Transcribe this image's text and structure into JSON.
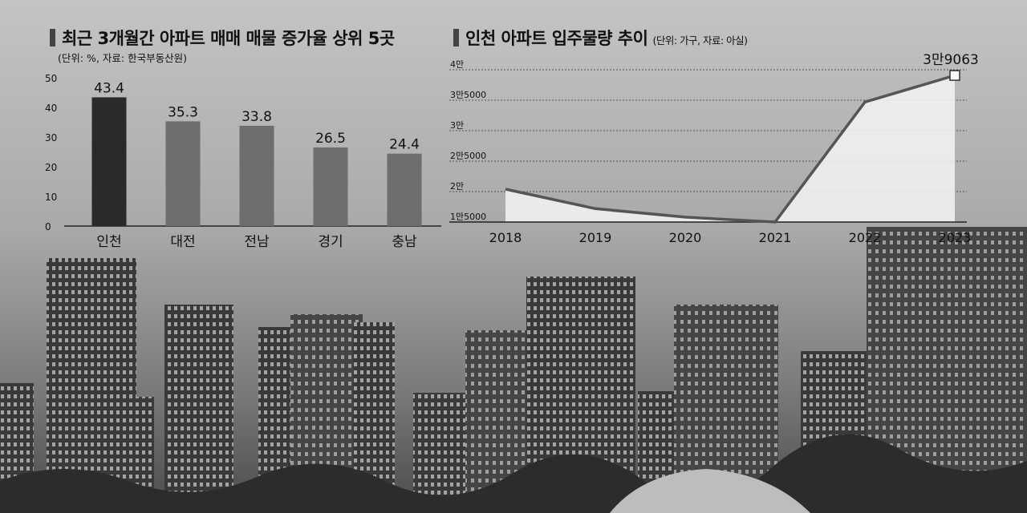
{
  "left_chart": {
    "title": "최근 3개월간 아파트 매매 매물 증가율 상위 5곳",
    "unit_note": "(단위: %, 자료: 한국부동산원)"
  },
  "right_chart": {
    "title": "인천 아파트 입주물량 추이",
    "unit_note": "(단위: 가구, 자료: 아실)"
  },
  "colors": {
    "highlight_bar": "#2a2a2a",
    "bar": "#6e6e6e",
    "line": "#555555",
    "area": "#f4f4f4"
  },
  "chart_data": [
    {
      "type": "bar",
      "title": "최근 3개월간 아파트 매매 매물 증가율 상위 5곳",
      "categories": [
        "인천",
        "대전",
        "전남",
        "경기",
        "충남"
      ],
      "values": [
        43.4,
        35.3,
        33.8,
        26.5,
        24.4
      ],
      "value_labels": [
        "43.4",
        "35.3",
        "33.8",
        "26.5",
        "24.4"
      ],
      "ylim": [
        0,
        50
      ],
      "y_ticks": [
        0,
        10,
        20,
        30,
        40,
        50
      ],
      "y_tick_labels": [
        "0",
        "10",
        "20",
        "30",
        "40",
        "50"
      ],
      "grid": false
    },
    {
      "type": "area",
      "title": "인천 아파트 입주물량 추이",
      "categories": [
        "2018",
        "2019",
        "2020",
        "2021",
        "2022",
        "2023"
      ],
      "values": [
        20400,
        17200,
        15800,
        15000,
        34700,
        39063
      ],
      "annotation": "3만9063",
      "ylim": [
        15000,
        40000
      ],
      "y_ticks": [
        15000,
        20000,
        25000,
        30000,
        35000,
        40000
      ],
      "y_tick_labels": [
        "1만5000",
        "2만",
        "2만5000",
        "3만",
        "3만5000",
        "4만"
      ],
      "grid": true
    }
  ]
}
